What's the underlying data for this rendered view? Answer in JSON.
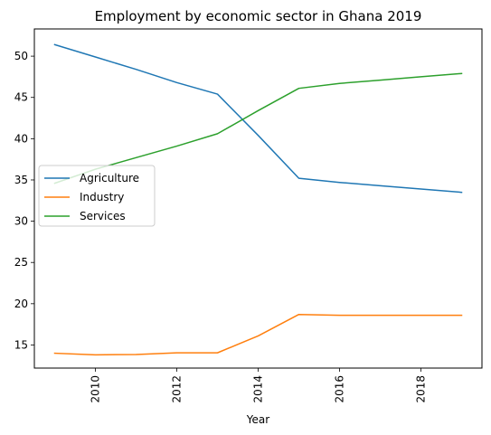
{
  "chart_data": {
    "type": "line",
    "title": "Employment by economic sector in Ghana 2019",
    "xlabel": "Year",
    "ylabel": "",
    "x": [
      2009,
      2010,
      2011,
      2012,
      2013,
      2014,
      2015,
      2016,
      2017,
      2018,
      2019
    ],
    "xlim": [
      2008.5,
      2019.5
    ],
    "ylim": [
      12.2,
      53.3
    ],
    "xticks": [
      2010,
      2012,
      2014,
      2016,
      2018
    ],
    "yticks": [
      15,
      20,
      25,
      30,
      35,
      40,
      45,
      50
    ],
    "x_tick_rotation": "vertical",
    "grid": false,
    "legend_position": "center-left",
    "series": [
      {
        "name": "Agriculture",
        "color": "#1f77b4",
        "values": [
          51.4,
          49.9,
          48.4,
          46.8,
          45.4,
          40.4,
          35.2,
          34.7,
          34.3,
          33.9,
          33.5
        ]
      },
      {
        "name": "Industry",
        "color": "#ff7f0e",
        "values": [
          14.0,
          13.8,
          13.85,
          14.05,
          14.05,
          16.1,
          18.7,
          18.6,
          18.6,
          18.6,
          18.6
        ]
      },
      {
        "name": "Services",
        "color": "#2ca02c",
        "values": [
          34.6,
          36.3,
          37.7,
          39.1,
          40.6,
          43.4,
          46.1,
          46.7,
          47.1,
          47.5,
          47.9
        ]
      }
    ]
  }
}
